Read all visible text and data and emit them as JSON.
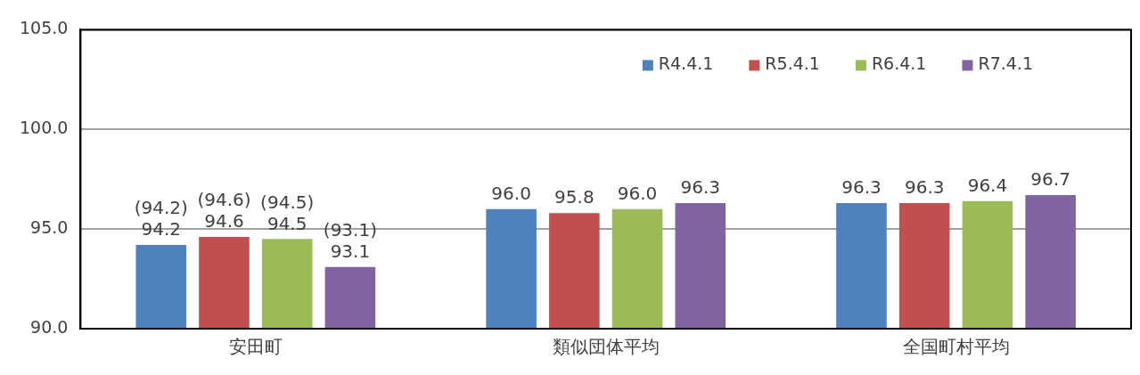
{
  "chart_data": {
    "type": "bar",
    "categories": [
      "安田町",
      "類似団体平均",
      "全国町村平均"
    ],
    "series": [
      {
        "name": "R4.4.1",
        "color": "#4f81bd",
        "values": [
          94.2,
          96.0,
          96.3
        ],
        "value_labels": [
          "(94.2)\n94.2",
          "96.0",
          "96.3"
        ]
      },
      {
        "name": "R5.4.1",
        "color": "#c0504d",
        "values": [
          94.6,
          95.8,
          96.3
        ],
        "value_labels": [
          "(94.6)\n94.6",
          "95.8",
          "96.3"
        ]
      },
      {
        "name": "R6.4.1",
        "color": "#9bbb59",
        "values": [
          94.5,
          96.0,
          96.4
        ],
        "value_labels": [
          "(94.5)\n94.5",
          "96.0",
          "96.4"
        ]
      },
      {
        "name": "R7.4.1",
        "color": "#8064a2",
        "values": [
          93.1,
          96.3,
          96.7
        ],
        "value_labels": [
          "(93.1)\n93.1",
          "96.3",
          "96.7"
        ]
      }
    ],
    "ylim": [
      90,
      105
    ],
    "yticks": [
      {
        "value": 90,
        "label": "90.0"
      },
      {
        "value": 95,
        "label": "95.0"
      },
      {
        "value": 100,
        "label": "100.0"
      },
      {
        "value": 105,
        "label": "105.0"
      }
    ],
    "grid": "y",
    "legend": "top right"
  }
}
